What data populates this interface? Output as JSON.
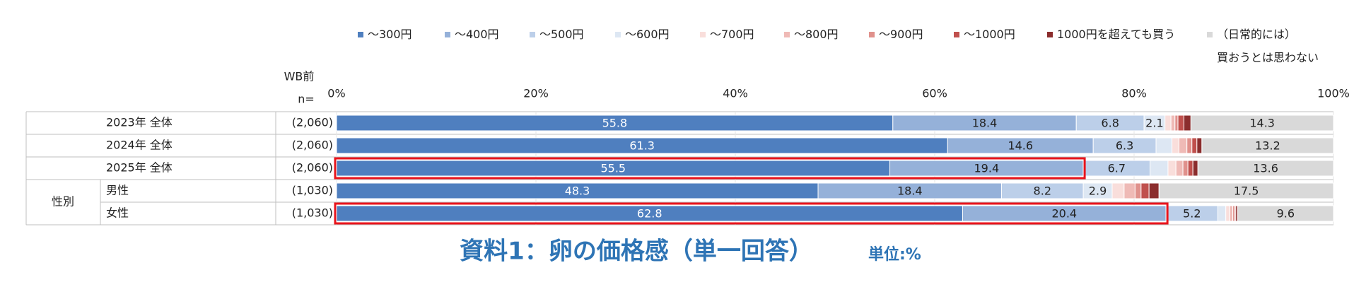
{
  "chart_data": {
    "type": "stacked-bar-horizontal",
    "title": "資料1：卵の価格感（単一回答）",
    "subtitle": "単位:%",
    "n_header": [
      "WB前",
      "n="
    ],
    "categories": [
      "2023年 全体",
      "2024年 全体",
      "2025年 全体",
      "男性",
      "女性"
    ],
    "category_groups": [
      null,
      null,
      null,
      "性別",
      "性別"
    ],
    "n_labels": [
      "(2,060)",
      "(2,060)",
      "(2,060)",
      "(1,030)",
      "(1,030)"
    ],
    "series": [
      {
        "name": "～300円",
        "color": "#4f7fbf",
        "values": [
          55.8,
          61.3,
          55.5,
          48.3,
          62.8
        ]
      },
      {
        "name": "～400円",
        "color": "#95b1d9",
        "values": [
          18.4,
          14.6,
          19.4,
          18.4,
          20.4
        ]
      },
      {
        "name": "～500円",
        "color": "#bccfe9",
        "values": [
          6.8,
          6.3,
          6.7,
          8.2,
          5.2
        ]
      },
      {
        "name": "～600円",
        "color": "#dde7f3",
        "values": [
          2.1,
          1.6,
          1.8,
          2.9,
          0.8
        ]
      },
      {
        "name": "～700円",
        "color": "#f9dedb",
        "values": [
          0.6,
          0.7,
          0.8,
          1.2,
          0.4
        ]
      },
      {
        "name": "～800円",
        "color": "#efbab6",
        "values": [
          0.4,
          0.8,
          0.7,
          1.1,
          0.3
        ]
      },
      {
        "name": "～900円",
        "color": "#e0918c",
        "values": [
          0.3,
          0.5,
          0.5,
          0.6,
          0.2
        ]
      },
      {
        "name": "～1000円",
        "color": "#c0504d",
        "values": [
          0.6,
          0.5,
          0.5,
          0.8,
          0.1
        ]
      },
      {
        "name": "1000円を超えても買う",
        "color": "#8b2d2d",
        "values": [
          0.7,
          0.5,
          0.5,
          1.0,
          0.2
        ]
      },
      {
        "name": "（日常的には）\n買おうとは思わない",
        "color": "#d9d9d9",
        "values": [
          14.3,
          13.2,
          13.6,
          17.5,
          9.6
        ]
      }
    ],
    "label_min": 2,
    "xlim": [
      0,
      100
    ],
    "xticks": [
      {
        "value": 0,
        "label": "0%"
      },
      {
        "value": 20,
        "label": "20%"
      },
      {
        "value": 40,
        "label": "40%"
      },
      {
        "value": 60,
        "label": "60%"
      },
      {
        "value": 80,
        "label": "80%"
      },
      {
        "value": 100,
        "label": "100%"
      }
    ],
    "grid": true,
    "legend": "top",
    "highlights": [
      {
        "row": 2,
        "series": [
          0,
          1
        ]
      },
      {
        "row": 4,
        "series": [
          0,
          1
        ]
      }
    ],
    "highlight_color": "#e8141c"
  }
}
